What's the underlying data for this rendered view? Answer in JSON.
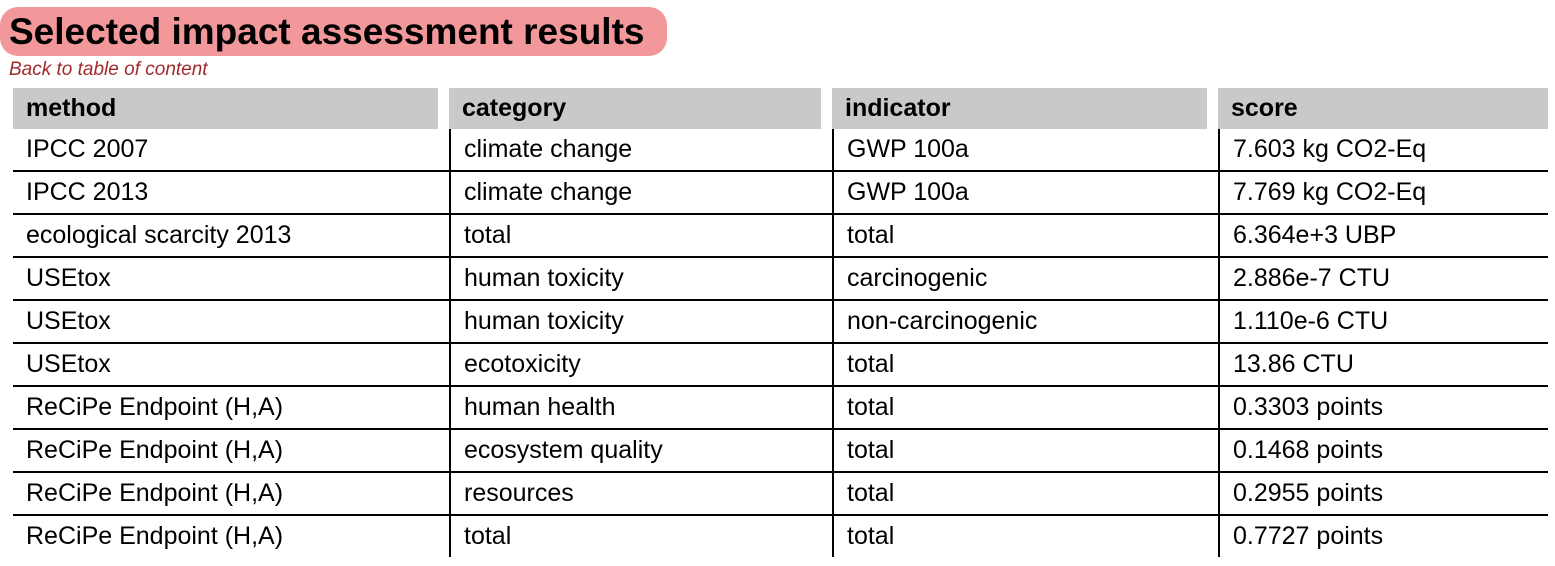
{
  "page": {
    "title": "Selected impact assessment results",
    "back_link": "Back to table of content"
  },
  "colors": {
    "title_highlight": "#F2979A",
    "link": "#A12B2B",
    "header_bg": "#C9C9C9",
    "border": "#000000"
  },
  "table": {
    "columns": [
      "method",
      "category",
      "indicator",
      "score"
    ],
    "rows": [
      [
        "IPCC 2007",
        "climate change",
        "GWP 100a",
        "7.603 kg CO2-Eq"
      ],
      [
        "IPCC 2013",
        "climate change",
        "GWP 100a",
        "7.769 kg CO2-Eq"
      ],
      [
        "ecological scarcity 2013",
        "total",
        "total",
        "6.364e+3 UBP"
      ],
      [
        "USEtox",
        "human toxicity",
        "carcinogenic",
        "2.886e-7 CTU"
      ],
      [
        "USEtox",
        "human toxicity",
        "non-carcinogenic",
        "1.110e-6 CTU"
      ],
      [
        "USEtox",
        "ecotoxicity",
        "total",
        "13.86 CTU"
      ],
      [
        "ReCiPe Endpoint (H,A)",
        "human health",
        "total",
        "0.3303 points"
      ],
      [
        "ReCiPe Endpoint (H,A)",
        "ecosystem quality",
        "total",
        "0.1468 points"
      ],
      [
        "ReCiPe Endpoint (H,A)",
        "resources",
        "total",
        "0.2955 points"
      ],
      [
        "ReCiPe Endpoint (H,A)",
        "total",
        "total",
        "0.7727 points"
      ]
    ]
  }
}
